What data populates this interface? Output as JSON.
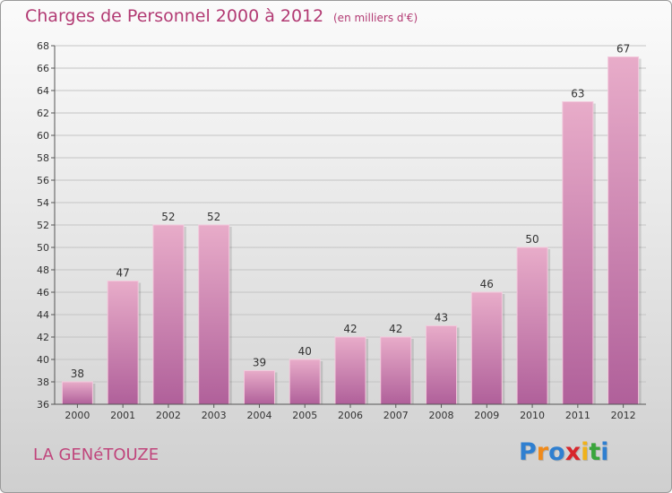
{
  "title": "Charges de Personnel 2000 à 2012",
  "subtitle": "(en milliers d'€)",
  "town": "LA GENéTOUZE",
  "logo": {
    "letters": [
      {
        "char": "P",
        "color": "#2f7fd0"
      },
      {
        "char": "r",
        "color": "#f08a1a"
      },
      {
        "char": "o",
        "color": "#2f7fd0"
      },
      {
        "char": "x",
        "color": "#d7262c"
      },
      {
        "char": "i",
        "color": "#f0b21a"
      },
      {
        "char": "t",
        "color": "#3aa53c"
      },
      {
        "char": "i",
        "color": "#2f7fd0"
      }
    ]
  },
  "colors": {
    "bar": "#d98ab4",
    "bar_top": "#e8acc9",
    "bar_bottom": "#b0609a",
    "accent": "#b23a73"
  },
  "chart_data": {
    "type": "bar",
    "categories": [
      "2000",
      "2001",
      "2002",
      "2003",
      "2004",
      "2005",
      "2006",
      "2007",
      "2008",
      "2009",
      "2010",
      "2011",
      "2012"
    ],
    "values": [
      38,
      47,
      52,
      52,
      39,
      40,
      42,
      42,
      43,
      46,
      50,
      63,
      67
    ],
    "value_labels": [
      "38",
      "47",
      "52",
      "52",
      "39",
      "40",
      "42",
      "42",
      "43",
      "46",
      "50",
      "63",
      "67"
    ],
    "title": "Charges de Personnel 2000 à 2012",
    "xlabel": "",
    "ylabel": "",
    "ylim": [
      36,
      68
    ],
    "yticks": [
      "36",
      "38",
      "40",
      "42",
      "44",
      "46",
      "48",
      "50",
      "52",
      "54",
      "56",
      "58",
      "60",
      "62",
      "64",
      "66",
      "68"
    ],
    "grid": true,
    "legend": "none"
  }
}
